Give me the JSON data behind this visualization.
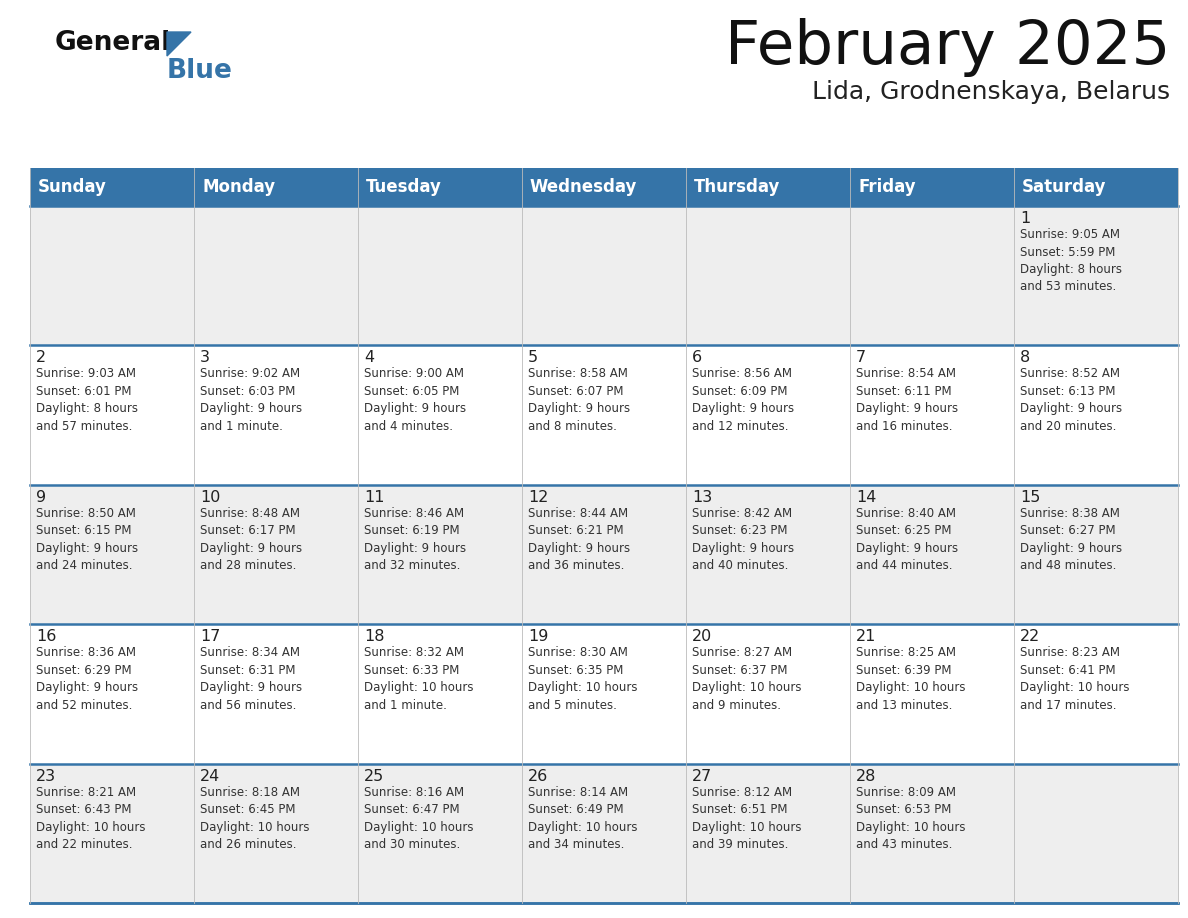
{
  "title": "February 2025",
  "subtitle": "Lida, Grodnenskaya, Belarus",
  "header_color": "#3574a8",
  "header_text_color": "#ffffff",
  "day_names": [
    "Sunday",
    "Monday",
    "Tuesday",
    "Wednesday",
    "Thursday",
    "Friday",
    "Saturday"
  ],
  "background_color": "#ffffff",
  "row_colors": [
    "#eeeeee",
    "#ffffff",
    "#eeeeee",
    "#ffffff",
    "#eeeeee"
  ],
  "cell_border_color": "#3574a8",
  "day_num_color": "#222222",
  "info_text_color": "#333333",
  "logo_general_color": "#111111",
  "logo_blue_color": "#3574a8",
  "logo_triangle_color": "#3574a8",
  "title_color": "#111111",
  "subtitle_color": "#222222",
  "weeks": [
    [
      {
        "day": null,
        "info": ""
      },
      {
        "day": null,
        "info": ""
      },
      {
        "day": null,
        "info": ""
      },
      {
        "day": null,
        "info": ""
      },
      {
        "day": null,
        "info": ""
      },
      {
        "day": null,
        "info": ""
      },
      {
        "day": 1,
        "info": "Sunrise: 9:05 AM\nSunset: 5:59 PM\nDaylight: 8 hours\nand 53 minutes."
      }
    ],
    [
      {
        "day": 2,
        "info": "Sunrise: 9:03 AM\nSunset: 6:01 PM\nDaylight: 8 hours\nand 57 minutes."
      },
      {
        "day": 3,
        "info": "Sunrise: 9:02 AM\nSunset: 6:03 PM\nDaylight: 9 hours\nand 1 minute."
      },
      {
        "day": 4,
        "info": "Sunrise: 9:00 AM\nSunset: 6:05 PM\nDaylight: 9 hours\nand 4 minutes."
      },
      {
        "day": 5,
        "info": "Sunrise: 8:58 AM\nSunset: 6:07 PM\nDaylight: 9 hours\nand 8 minutes."
      },
      {
        "day": 6,
        "info": "Sunrise: 8:56 AM\nSunset: 6:09 PM\nDaylight: 9 hours\nand 12 minutes."
      },
      {
        "day": 7,
        "info": "Sunrise: 8:54 AM\nSunset: 6:11 PM\nDaylight: 9 hours\nand 16 minutes."
      },
      {
        "day": 8,
        "info": "Sunrise: 8:52 AM\nSunset: 6:13 PM\nDaylight: 9 hours\nand 20 minutes."
      }
    ],
    [
      {
        "day": 9,
        "info": "Sunrise: 8:50 AM\nSunset: 6:15 PM\nDaylight: 9 hours\nand 24 minutes."
      },
      {
        "day": 10,
        "info": "Sunrise: 8:48 AM\nSunset: 6:17 PM\nDaylight: 9 hours\nand 28 minutes."
      },
      {
        "day": 11,
        "info": "Sunrise: 8:46 AM\nSunset: 6:19 PM\nDaylight: 9 hours\nand 32 minutes."
      },
      {
        "day": 12,
        "info": "Sunrise: 8:44 AM\nSunset: 6:21 PM\nDaylight: 9 hours\nand 36 minutes."
      },
      {
        "day": 13,
        "info": "Sunrise: 8:42 AM\nSunset: 6:23 PM\nDaylight: 9 hours\nand 40 minutes."
      },
      {
        "day": 14,
        "info": "Sunrise: 8:40 AM\nSunset: 6:25 PM\nDaylight: 9 hours\nand 44 minutes."
      },
      {
        "day": 15,
        "info": "Sunrise: 8:38 AM\nSunset: 6:27 PM\nDaylight: 9 hours\nand 48 minutes."
      }
    ],
    [
      {
        "day": 16,
        "info": "Sunrise: 8:36 AM\nSunset: 6:29 PM\nDaylight: 9 hours\nand 52 minutes."
      },
      {
        "day": 17,
        "info": "Sunrise: 8:34 AM\nSunset: 6:31 PM\nDaylight: 9 hours\nand 56 minutes."
      },
      {
        "day": 18,
        "info": "Sunrise: 8:32 AM\nSunset: 6:33 PM\nDaylight: 10 hours\nand 1 minute."
      },
      {
        "day": 19,
        "info": "Sunrise: 8:30 AM\nSunset: 6:35 PM\nDaylight: 10 hours\nand 5 minutes."
      },
      {
        "day": 20,
        "info": "Sunrise: 8:27 AM\nSunset: 6:37 PM\nDaylight: 10 hours\nand 9 minutes."
      },
      {
        "day": 21,
        "info": "Sunrise: 8:25 AM\nSunset: 6:39 PM\nDaylight: 10 hours\nand 13 minutes."
      },
      {
        "day": 22,
        "info": "Sunrise: 8:23 AM\nSunset: 6:41 PM\nDaylight: 10 hours\nand 17 minutes."
      }
    ],
    [
      {
        "day": 23,
        "info": "Sunrise: 8:21 AM\nSunset: 6:43 PM\nDaylight: 10 hours\nand 22 minutes."
      },
      {
        "day": 24,
        "info": "Sunrise: 8:18 AM\nSunset: 6:45 PM\nDaylight: 10 hours\nand 26 minutes."
      },
      {
        "day": 25,
        "info": "Sunrise: 8:16 AM\nSunset: 6:47 PM\nDaylight: 10 hours\nand 30 minutes."
      },
      {
        "day": 26,
        "info": "Sunrise: 8:14 AM\nSunset: 6:49 PM\nDaylight: 10 hours\nand 34 minutes."
      },
      {
        "day": 27,
        "info": "Sunrise: 8:12 AM\nSunset: 6:51 PM\nDaylight: 10 hours\nand 39 minutes."
      },
      {
        "day": 28,
        "info": "Sunrise: 8:09 AM\nSunset: 6:53 PM\nDaylight: 10 hours\nand 43 minutes."
      },
      {
        "day": null,
        "info": ""
      }
    ]
  ]
}
